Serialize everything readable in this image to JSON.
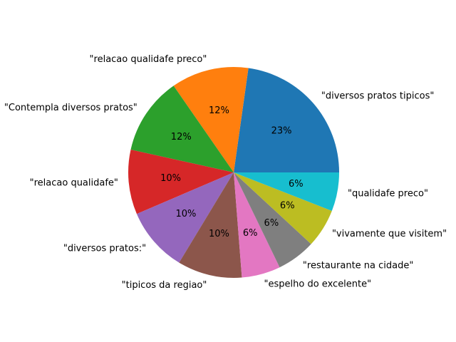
{
  "chart_data": {
    "type": "pie",
    "title": "",
    "start_angle_deg": 0,
    "counterclock": true,
    "slices": [
      {
        "label": "\"diversos pratos tipicos\"",
        "value": 23,
        "pct_label": "23%",
        "color": "#1f77b4"
      },
      {
        "label": "\"relacao qualidafe preco\"",
        "value": 12,
        "pct_label": "12%",
        "color": "#ff7f0e"
      },
      {
        "label": "\"Contempla diversos pratos\"",
        "value": 12,
        "pct_label": "12%",
        "color": "#2ca02c"
      },
      {
        "label": "\"relacao qualidafe\"",
        "value": 10,
        "pct_label": "10%",
        "color": "#d62728"
      },
      {
        "label": "\"diversos pratos:\"",
        "value": 10,
        "pct_label": "10%",
        "color": "#9467bd"
      },
      {
        "label": "\"tipicos da regiao\"",
        "value": 10,
        "pct_label": "10%",
        "color": "#8c564b"
      },
      {
        "label": "\"espelho do excelente\"",
        "value": 6,
        "pct_label": "6%",
        "color": "#e377c2"
      },
      {
        "label": "\"restaurante na cidade\"",
        "value": 6,
        "pct_label": "6%",
        "color": "#7f7f7f"
      },
      {
        "label": "\"vivamente que visitem\"",
        "value": 6,
        "pct_label": "6%",
        "color": "#bcbd22"
      },
      {
        "label": "\"qualidafe preco\"",
        "value": 6,
        "pct_label": "6%",
        "color": "#17becf"
      }
    ]
  }
}
